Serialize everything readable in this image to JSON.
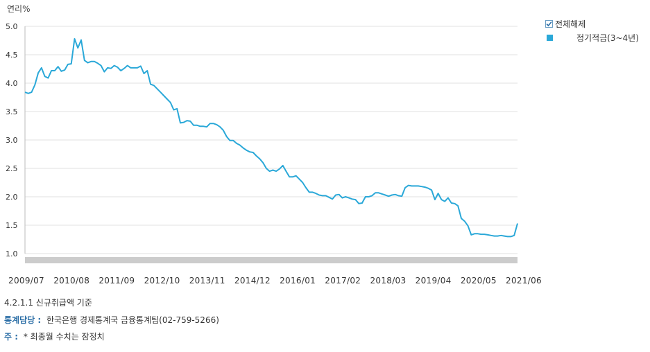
{
  "chart_data": {
    "type": "line",
    "ylabel": "연리%",
    "ylim": [
      1.0,
      5.0
    ],
    "yticks": [
      "5.0",
      "4.5",
      "4.0",
      "3.5",
      "3.0",
      "2.5",
      "2.0",
      "1.5",
      "1.0"
    ],
    "xticks": [
      "2009/07",
      "2010/08",
      "2011/09",
      "2012/10",
      "2013/11",
      "2014/12",
      "2016/01",
      "2017/02",
      "2018/03",
      "2019/04",
      "2020/05",
      "2021/06"
    ],
    "grid": true,
    "legend_position": "top-right",
    "series": [
      {
        "name": "정기적금(3~4년)",
        "color": "#2aa8d8",
        "values": [
          3.84,
          3.82,
          3.84,
          3.97,
          4.18,
          4.27,
          4.12,
          4.09,
          4.22,
          4.22,
          4.29,
          4.21,
          4.23,
          4.33,
          4.34,
          4.78,
          4.62,
          4.76,
          4.4,
          4.36,
          4.38,
          4.38,
          4.35,
          4.31,
          4.2,
          4.27,
          4.26,
          4.31,
          4.28,
          4.22,
          4.26,
          4.31,
          4.27,
          4.27,
          4.27,
          4.3,
          4.17,
          4.22,
          3.98,
          3.96,
          3.9,
          3.84,
          3.78,
          3.72,
          3.66,
          3.53,
          3.55,
          3.3,
          3.31,
          3.34,
          3.33,
          3.26,
          3.26,
          3.24,
          3.24,
          3.23,
          3.29,
          3.29,
          3.27,
          3.23,
          3.17,
          3.06,
          2.99,
          2.99,
          2.94,
          2.91,
          2.86,
          2.82,
          2.79,
          2.78,
          2.72,
          2.67,
          2.6,
          2.5,
          2.45,
          2.47,
          2.45,
          2.49,
          2.55,
          2.45,
          2.35,
          2.35,
          2.37,
          2.31,
          2.25,
          2.16,
          2.08,
          2.08,
          2.06,
          2.03,
          2.02,
          2.02,
          1.99,
          1.96,
          2.03,
          2.04,
          1.98,
          2.0,
          1.98,
          1.96,
          1.95,
          1.88,
          1.89,
          2.0,
          2.0,
          2.02,
          2.07,
          2.07,
          2.05,
          2.03,
          2.01,
          2.03,
          2.04,
          2.02,
          2.01,
          2.16,
          2.2,
          2.19,
          2.19,
          2.19,
          2.18,
          2.17,
          2.15,
          2.12,
          1.95,
          2.06,
          1.95,
          1.92,
          1.98,
          1.89,
          1.88,
          1.84,
          1.62,
          1.57,
          1.49,
          1.33,
          1.35,
          1.35,
          1.34,
          1.34,
          1.33,
          1.32,
          1.31,
          1.31,
          1.32,
          1.31,
          1.3,
          1.3,
          1.32,
          1.53
        ]
      }
    ]
  },
  "legend": {
    "select_all_label": "전체해제",
    "items": [
      {
        "label": "정기적금(3~4년)",
        "color": "#2aa8d8"
      }
    ]
  },
  "footer": {
    "title": "4.2.1.1 신규취급액 기준",
    "source_key": "통계담당 :",
    "source_value": "한국은행 경제통계국 금융통계팀(02-759-5266)",
    "note_key": "주 :",
    "note_value": "* 최종월 수치는 잠정치"
  }
}
